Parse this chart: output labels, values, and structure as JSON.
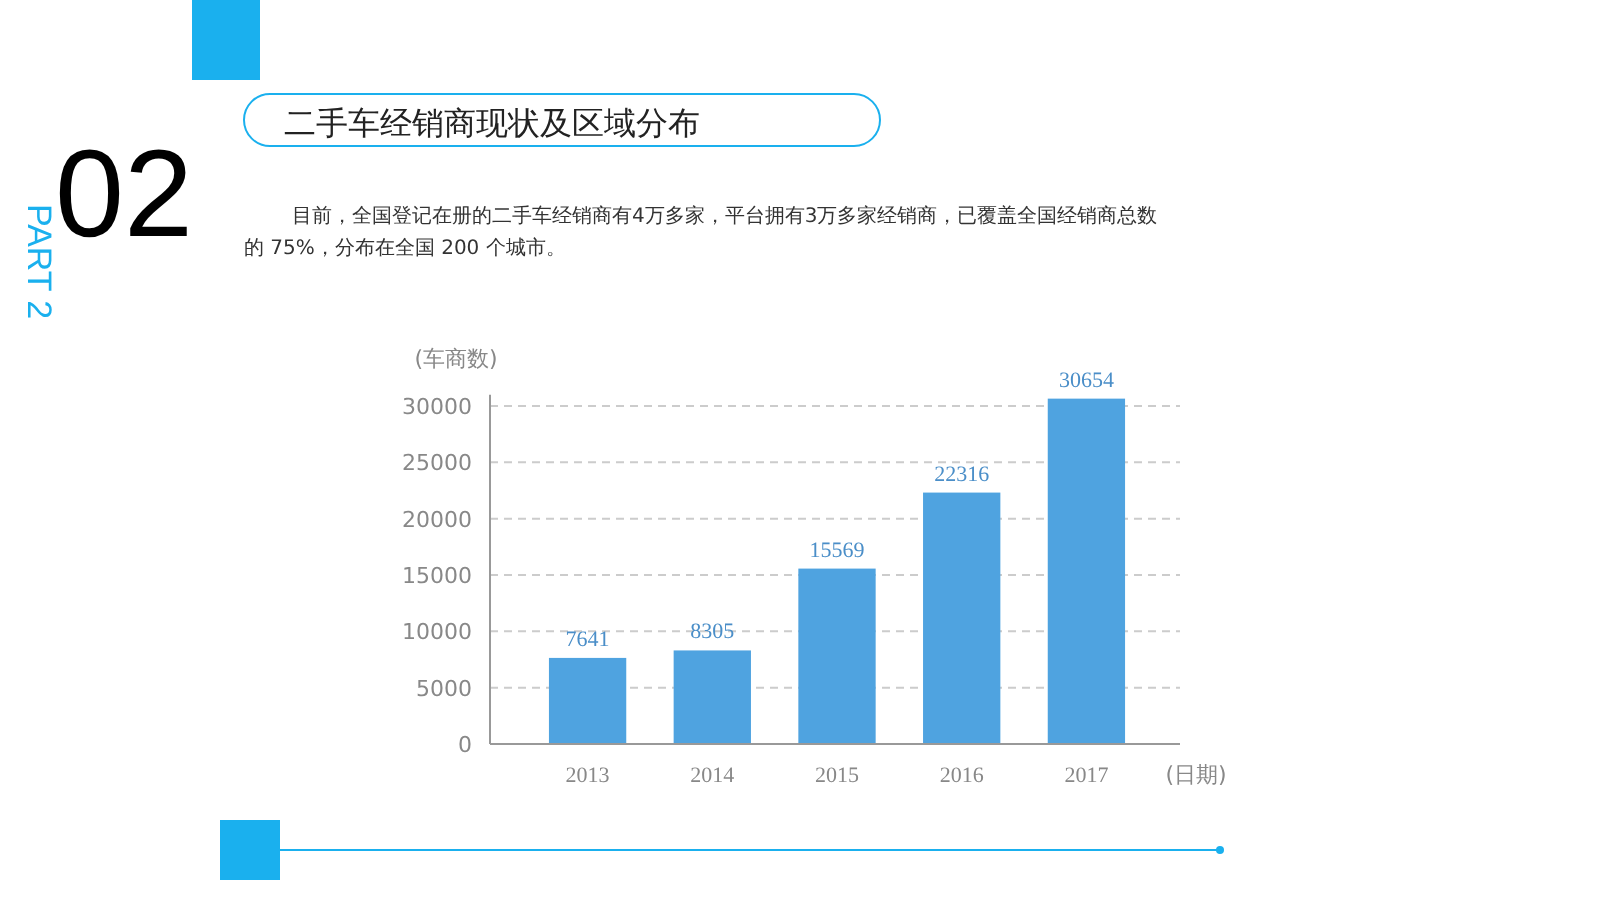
{
  "chart_data": {
    "type": "bar",
    "title": "二手车经销商现状及区域分布",
    "subtitle": "目前，全国登记在册的二手车经销商有4万多家，平台拥有3万多家经销商，已覆盖全国经销商总数的 75%，分布在全国 200 个城市。",
    "annotations": [
      "02",
      "PART 2"
    ],
    "ylabel": "(车商数)",
    "xlabel": "(日期)",
    "categories": [
      "2013",
      "2014",
      "2015",
      "2016",
      "2017"
    ],
    "values": [
      7641,
      8305,
      15569,
      22316,
      30654
    ],
    "color": "#4fa3e0",
    "ylim": [
      0,
      31000
    ],
    "yticks": [
      0,
      5000,
      10000,
      15000,
      20000,
      25000,
      30000
    ],
    "grid": "y",
    "data_labels": true
  }
}
